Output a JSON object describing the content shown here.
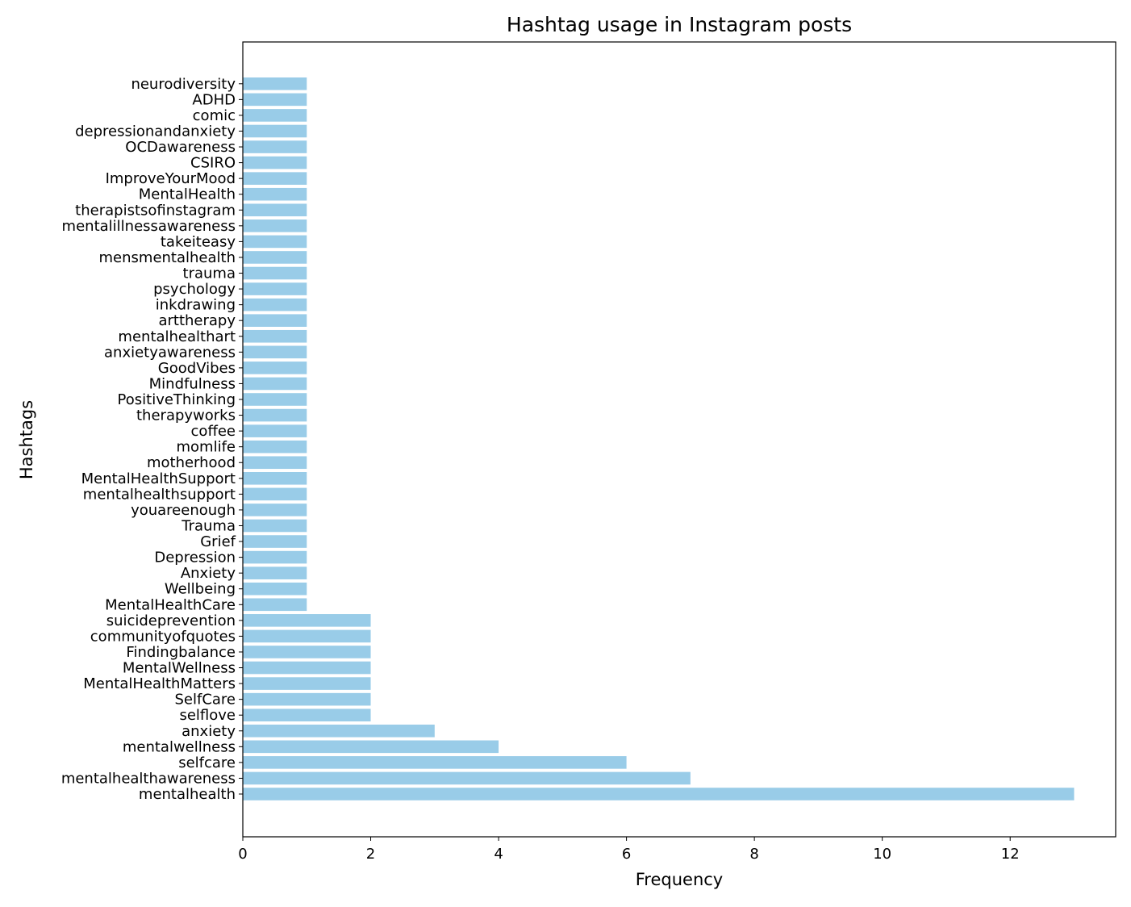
{
  "chart_data": {
    "type": "bar",
    "orientation": "horizontal",
    "title": "Hashtag usage in Instagram posts",
    "xlabel": "Frequency",
    "ylabel": "Hashtags",
    "xlim": [
      0,
      13.65
    ],
    "xticks": [
      0,
      2,
      4,
      6,
      8,
      10,
      12
    ],
    "grid": false,
    "bar_color": "#99cce8",
    "categories": [
      "mentalhealth",
      "mentalhealthawareness",
      "selfcare",
      "mentalwellness",
      "anxiety",
      "selflove",
      "SelfCare",
      "MentalHealthMatters",
      "MentalWellness",
      "Findingbalance",
      "communityofquotes",
      "suicideprevention",
      "MentalHealthCare",
      "Wellbeing",
      "Anxiety",
      "Depression",
      "Grief",
      "Trauma",
      "youareenough",
      "mentalhealthsupport",
      "MentalHealthSupport",
      "motherhood",
      "momlife",
      "coffee",
      "therapyworks",
      "PositiveThinking",
      "Mindfulness",
      "GoodVibes",
      "anxietyawareness",
      "mentalhealthart",
      "arttherapy",
      "inkdrawing",
      "psychology",
      "trauma",
      "mensmentalhealth",
      "takeiteasy",
      "mentalillnessawareness",
      "therapistsofinstagram",
      "MentalHealth",
      "ImproveYourMood",
      "CSIRO",
      "OCDawareness",
      "depressionandanxiety",
      "comic",
      "ADHD",
      "neurodiversity"
    ],
    "values": [
      13,
      7,
      6,
      4,
      3,
      2,
      2,
      2,
      2,
      2,
      2,
      2,
      1,
      1,
      1,
      1,
      1,
      1,
      1,
      1,
      1,
      1,
      1,
      1,
      1,
      1,
      1,
      1,
      1,
      1,
      1,
      1,
      1,
      1,
      1,
      1,
      1,
      1,
      1,
      1,
      1,
      1,
      1,
      1,
      1,
      1
    ]
  }
}
